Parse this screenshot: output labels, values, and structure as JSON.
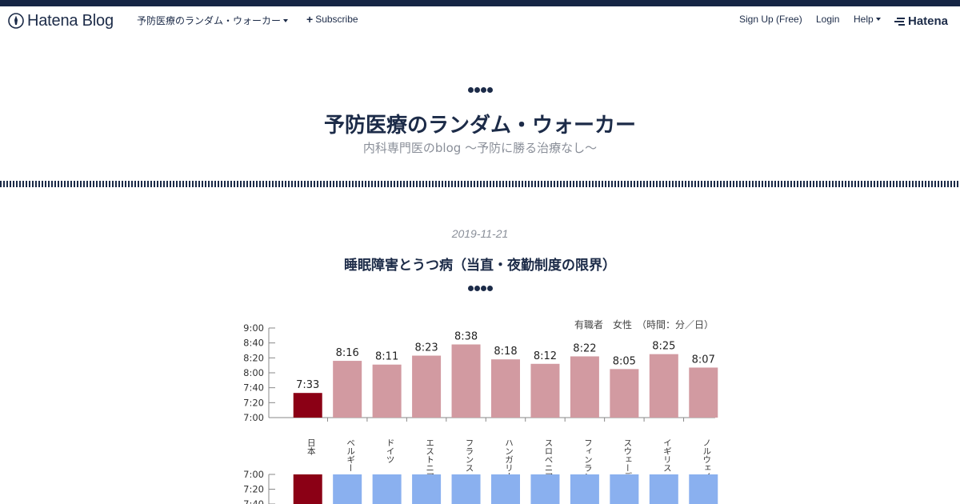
{
  "nav": {
    "brand": "Hatena Blog",
    "blog_link": "予防医療のランダム・ウォーカー",
    "subscribe": "Subscribe",
    "signup": "Sign Up (Free)",
    "login": "Login",
    "help": "Help",
    "hatena": "Hatena"
  },
  "blog": {
    "title": "予防医療のランダム・ウォーカー",
    "description": "内科専門医のblog 〜予防に勝る治療なし〜"
  },
  "entry": {
    "date": "2019-11-21",
    "title": "睡眠障害とうつ病（当直・夜勤制度の限界）"
  },
  "colors": {
    "navy": "#1c2b48",
    "japan_bar": "#8b0015",
    "other_bar": "#d29aa1",
    "lower_other_bar": "#8ab0ef"
  },
  "chart_data": [
    {
      "type": "bar",
      "title": "",
      "annotation": "有職者　女性　（時間：分／日）",
      "categories": [
        "日本",
        "ベルギー",
        "ドイツ",
        "エストニア",
        "フランス",
        "ハンガリー",
        "スロベニア",
        "フィンランド",
        "スウェーデン",
        "イギリス",
        "ノルウェイ"
      ],
      "value_labels": [
        "7:33",
        "8:16",
        "8:11",
        "8:23",
        "8:38",
        "8:18",
        "8:12",
        "8:22",
        "8:05",
        "8:25",
        "8:07"
      ],
      "values_minutes": [
        453,
        496,
        491,
        503,
        518,
        498,
        492,
        502,
        485,
        505,
        487
      ],
      "y_ticks": [
        "9:00",
        "8:40",
        "8:20",
        "8:00",
        "7:40",
        "7:20",
        "7:00"
      ],
      "ylim_minutes": [
        420,
        540
      ],
      "highlight": "日本"
    },
    {
      "type": "bar",
      "y_ticks": [
        "7:00",
        "7:20",
        "7:40"
      ],
      "note": "second chart partially visible, cut off at image bottom"
    }
  ]
}
